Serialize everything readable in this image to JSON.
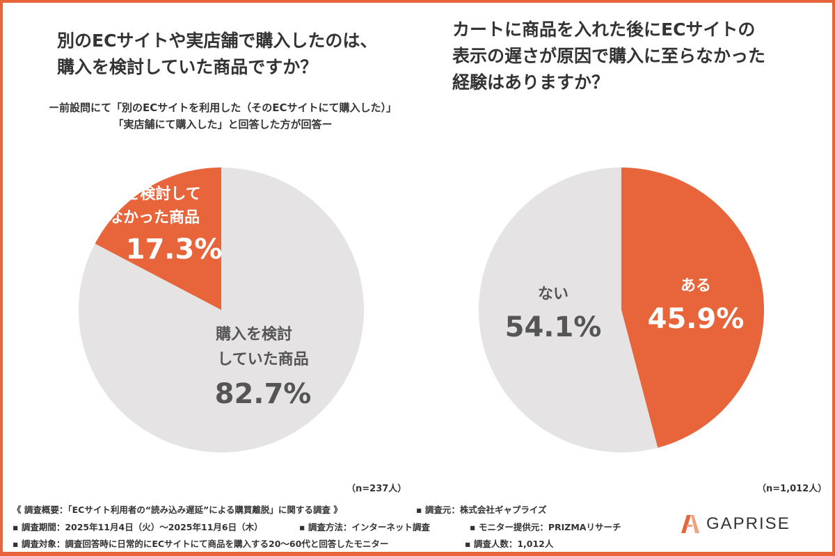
{
  "colors": {
    "accent": "#E8643A",
    "grey": "#E6E3E4",
    "frame": "#E8643A"
  },
  "chart_data": [
    {
      "type": "pie",
      "title": "別のECサイトや実店舗で購入したのは、購入を検討していた商品ですか？",
      "title_lines": [
        "別のECサイトや実店舗で購入したのは、",
        "購入を検討していた商品ですか？"
      ],
      "subtitle_lines": [
        "ー前設問にて「別のECサイトを利用した（そのECサイトにて購入した）」",
        "「実店舗にて購入した」と回答した方が回答ー"
      ],
      "slices": [
        {
          "label": "購入を検討していなかった商品",
          "label_lines": [
            "購入を検討して",
            "いなかった商品"
          ],
          "value": 17.3,
          "value_text": "17.3%",
          "color": "#E8643A"
        },
        {
          "label": "購入を検討していた商品",
          "label_lines": [
            "購入を検討",
            "していた商品"
          ],
          "value": 82.7,
          "value_text": "82.7%",
          "color": "#E6E3E4"
        }
      ],
      "n": "（n=237人）"
    },
    {
      "type": "pie",
      "title": "カートに商品を入れた後にECサイトの表示の遅さが原因で購入に至らなかった経験はありますか？",
      "title_lines": [
        "カートに商品を入れた後にECサイトの",
        "表示の遅さが原因で購入に至らなかった",
        "経験はありますか？"
      ],
      "slices": [
        {
          "label": "ある",
          "value": 45.9,
          "value_text": "45.9%",
          "color": "#E8643A"
        },
        {
          "label": "ない",
          "value": 54.1,
          "value_text": "54.1%",
          "color": "#E6E3E4"
        }
      ],
      "n": "（n=1,012人）"
    }
  ],
  "footer": {
    "line1a": "《 調査概要：「ECサイト利用者の“読み込み遅延”による購買離脱」に関する調査 》",
    "line1b": "▪ 調査元：株式会社ギャプライズ",
    "line2a": "▪ 調査期間：2025年11月4日（火）～2025年11月6日（木）",
    "line2b": "▪ 調査方法：インターネット調査",
    "line2c": "▪ モニター提供元：PRIZMAリサーチ",
    "line3a": "▪ 調査対象：調査回答時に日常的にECサイトにて商品を購入する20～60代と回答したモニター",
    "line3b": "▪ 調査人数：1,012人"
  },
  "logo": {
    "text": "GAPRISE"
  }
}
